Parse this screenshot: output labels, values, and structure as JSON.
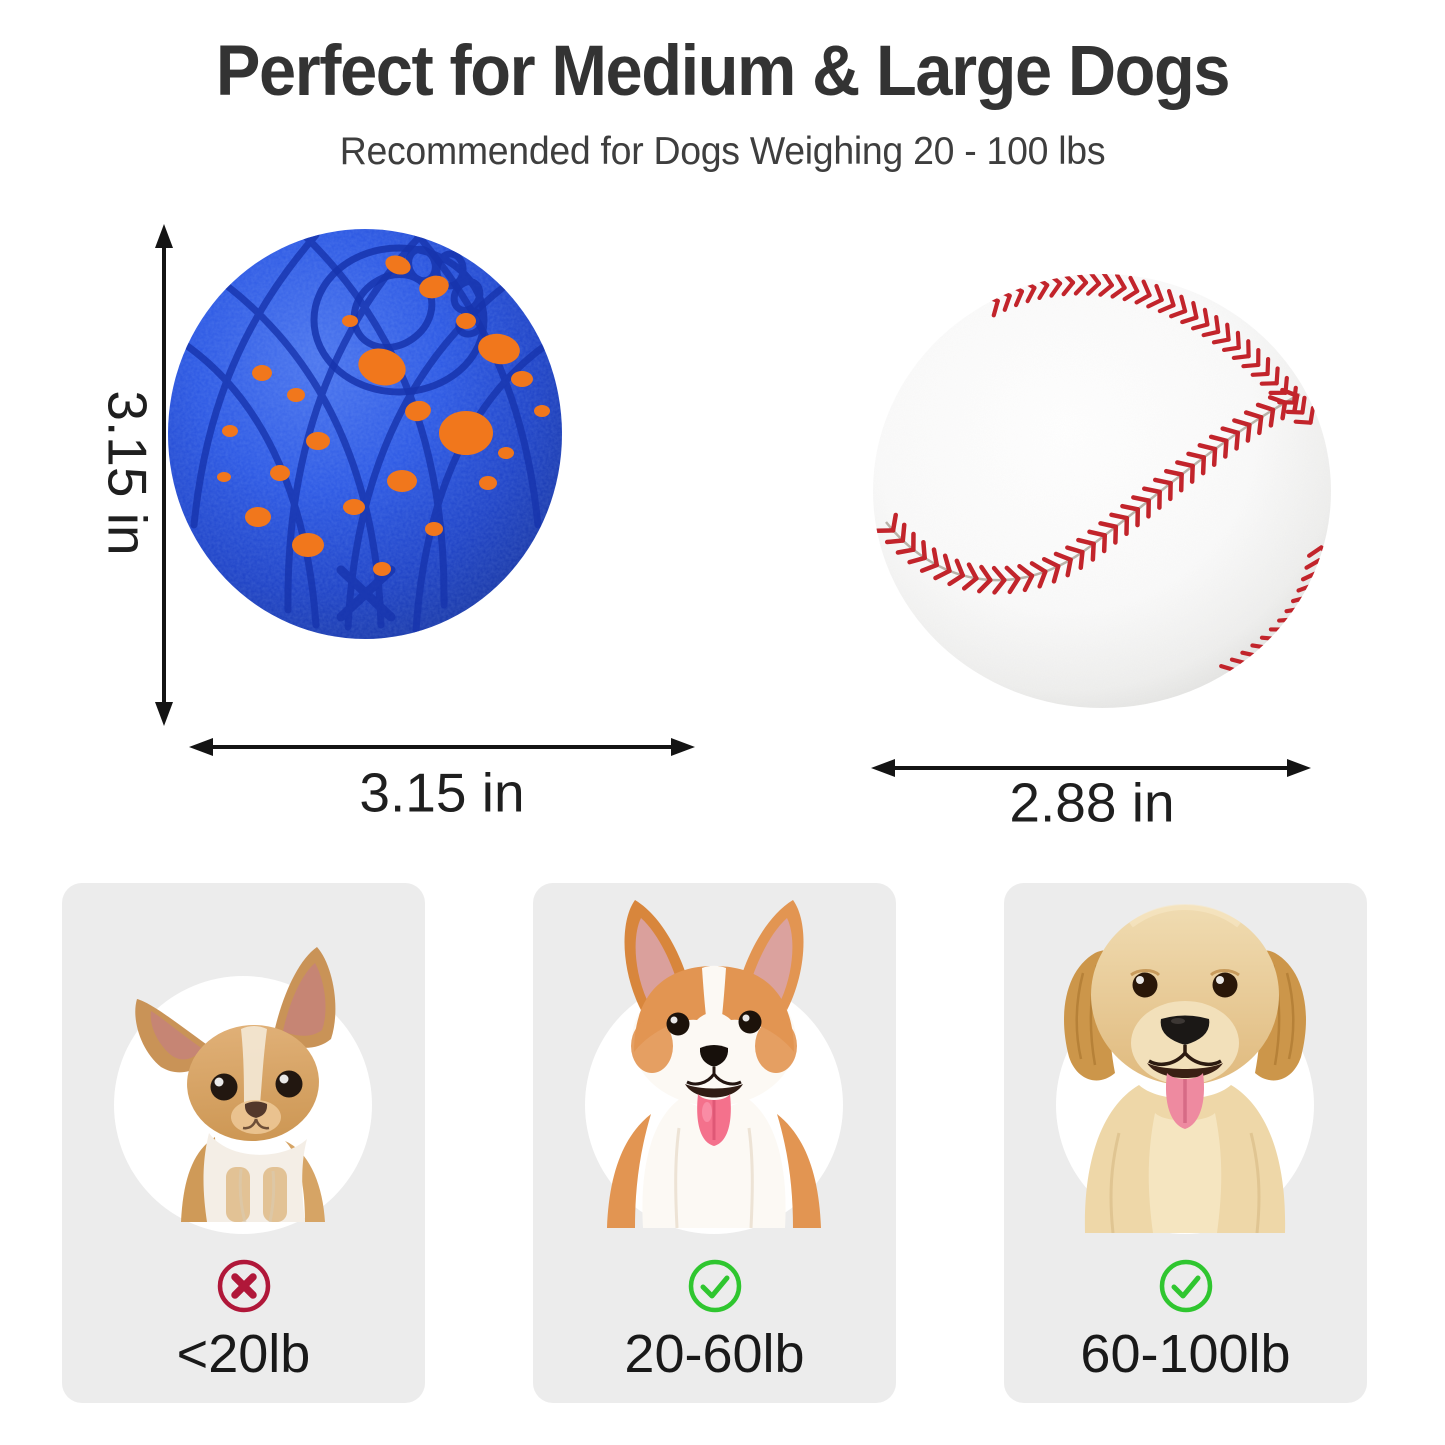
{
  "header": {
    "title": "Perfect for Medium & Large Dogs",
    "subtitle": "Recommended for Dogs Weighing 20 - 100 lbs"
  },
  "comparison": {
    "toy_ball": {
      "item": "blue paw-print dog ball with orange speckles",
      "height_label": "3.15 in",
      "width_label": "3.15 in"
    },
    "baseball": {
      "item": "baseball",
      "width_label": "2.88 in"
    }
  },
  "size_cards": [
    {
      "dog_breed": "chihuahua",
      "suitable": false,
      "icon": "x-circle",
      "weight_label": "<20lb"
    },
    {
      "dog_breed": "corgi",
      "suitable": true,
      "icon": "check-circle",
      "weight_label": "20-60lb"
    },
    {
      "dog_breed": "golden retriever",
      "suitable": true,
      "icon": "check-circle",
      "weight_label": "60-100lb"
    }
  ],
  "colors": {
    "title_text": "#333333",
    "body_text": "#1b1b1b",
    "card_bg": "#ececec",
    "ball_blue": "#2450e0",
    "speckle": "#f1771c",
    "stitch_red": "#c2242b",
    "cross_red": "#b01739",
    "check_green": "#2fc62f",
    "arrow_black": "#141414"
  }
}
